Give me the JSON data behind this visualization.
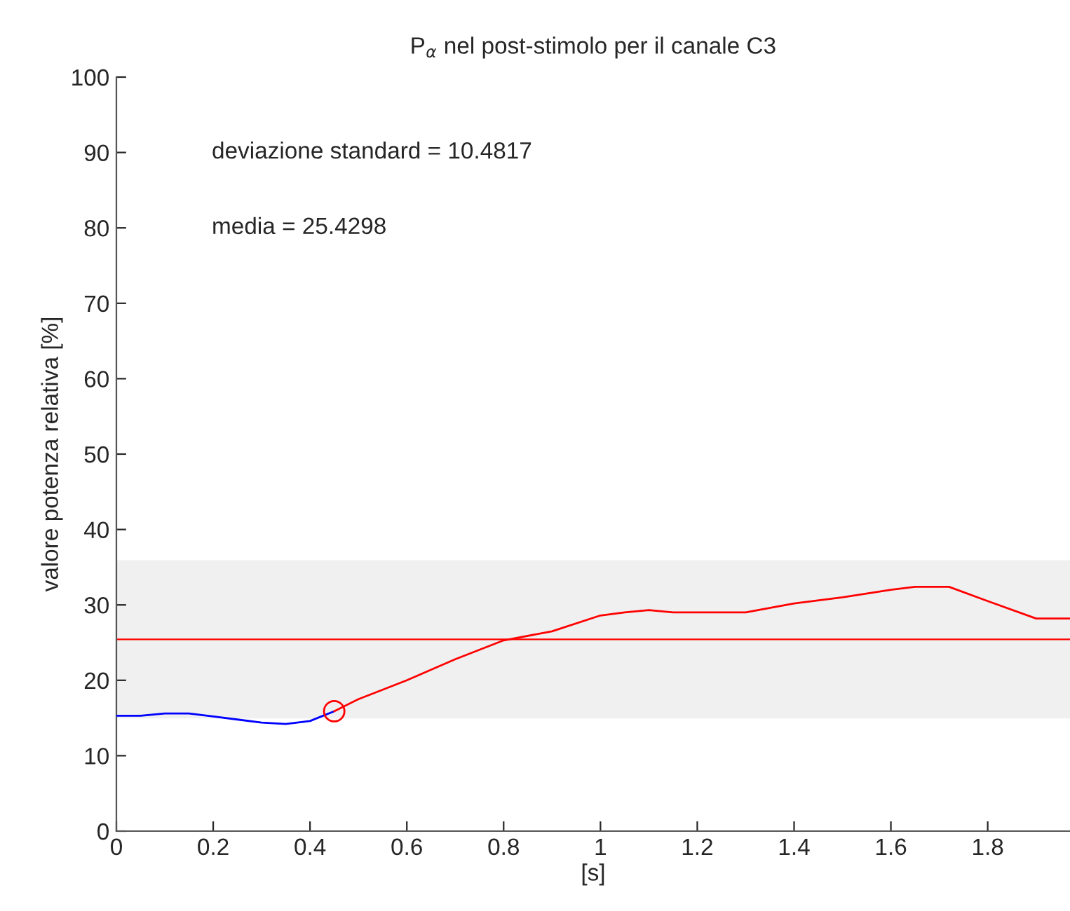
{
  "chart_data": {
    "type": "line",
    "title": "P$_{α}$ nel post-stimolo per il canale C3",
    "xlabel": "[s]",
    "ylabel": "valore potenza relativa [%]",
    "series": [
      {
        "color": "#0000ff",
        "x": [
          0,
          0.05,
          0.1,
          0.15,
          0.2,
          0.25,
          0.3,
          0.35,
          0.4,
          0.45
        ],
        "values": [
          15.3,
          15.3,
          15.6,
          15.6,
          15.2,
          14.8,
          14.4,
          14.2,
          14.6,
          15.9
        ]
      },
      {
        "color": "#ff0000",
        "x": [
          0.45,
          0.5,
          0.6,
          0.7,
          0.8,
          0.9,
          1.0,
          1.05,
          1.1,
          1.15,
          1.3,
          1.4,
          1.5,
          1.6,
          1.65,
          1.72,
          1.8,
          1.9,
          1.97
        ],
        "values": [
          15.9,
          17.5,
          20.0,
          22.8,
          25.3,
          26.5,
          28.6,
          29.0,
          29.3,
          29.0,
          29.0,
          30.2,
          31.0,
          32.0,
          32.4,
          32.4,
          30.5,
          28.2,
          28.2
        ]
      },
      {
        "type": "scatter",
        "color": "#ff0000",
        "marker": "circle",
        "x": [
          0.45
        ],
        "values": [
          15.9
        ]
      }
    ],
    "bands": [
      {
        "axis": "y",
        "from": 14.95,
        "to": 35.91,
        "color": "#f0f0f0"
      }
    ],
    "ref_lines": [
      {
        "axis": "y",
        "value": 25.43,
        "color": "#ff0000"
      }
    ],
    "annotations": [
      "deviazione standard = 10.4817",
      "media = 25.4298"
    ],
    "xlim": [
      0,
      1.97
    ],
    "xticks": [
      0,
      0.2,
      0.4,
      0.6,
      0.8,
      1,
      1.2,
      1.4,
      1.6,
      1.8
    ],
    "ylim": [
      0,
      100
    ],
    "yticks": [
      0,
      10,
      20,
      30,
      40,
      50,
      60,
      70,
      80,
      90,
      100
    ],
    "grid": false,
    "legend": false
  }
}
